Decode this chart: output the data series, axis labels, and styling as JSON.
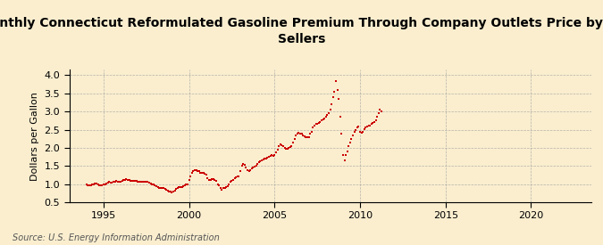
{
  "title": "Monthly Connecticut Reformulated Gasoline Premium Through Company Outlets Price by All\nSellers",
  "ylabel": "Dollars per Gallon",
  "source": "Source: U.S. Energy Information Administration",
  "background_color": "#faeecf",
  "plot_bg_color": "#faeecf",
  "marker_color": "#cc0000",
  "grid_color": "#999999",
  "xlim": [
    1993.0,
    2023.5
  ],
  "ylim": [
    0.5,
    4.15
  ],
  "xticks": [
    1995,
    2000,
    2005,
    2010,
    2015,
    2020
  ],
  "yticks": [
    0.5,
    1.0,
    1.5,
    2.0,
    2.5,
    3.0,
    3.5,
    4.0
  ],
  "title_fontsize": 10,
  "ylabel_fontsize": 8,
  "tick_fontsize": 8,
  "source_fontsize": 7,
  "data": [
    [
      1994.0,
      0.98
    ],
    [
      1994.083,
      0.97
    ],
    [
      1994.167,
      0.97
    ],
    [
      1994.25,
      0.97
    ],
    [
      1994.333,
      0.98
    ],
    [
      1994.417,
      1.0
    ],
    [
      1994.5,
      1.02
    ],
    [
      1994.583,
      1.01
    ],
    [
      1994.667,
      0.99
    ],
    [
      1994.75,
      0.97
    ],
    [
      1994.833,
      0.97
    ],
    [
      1994.917,
      0.96
    ],
    [
      1995.0,
      0.98
    ],
    [
      1995.083,
      0.99
    ],
    [
      1995.167,
      1.01
    ],
    [
      1995.25,
      1.04
    ],
    [
      1995.333,
      1.05
    ],
    [
      1995.417,
      1.04
    ],
    [
      1995.5,
      1.03
    ],
    [
      1995.583,
      1.05
    ],
    [
      1995.667,
      1.07
    ],
    [
      1995.75,
      1.08
    ],
    [
      1995.833,
      1.07
    ],
    [
      1995.917,
      1.05
    ],
    [
      1996.0,
      1.07
    ],
    [
      1996.083,
      1.08
    ],
    [
      1996.167,
      1.1
    ],
    [
      1996.25,
      1.12
    ],
    [
      1996.333,
      1.13
    ],
    [
      1996.417,
      1.12
    ],
    [
      1996.5,
      1.1
    ],
    [
      1996.583,
      1.09
    ],
    [
      1996.667,
      1.08
    ],
    [
      1996.75,
      1.09
    ],
    [
      1996.833,
      1.09
    ],
    [
      1996.917,
      1.08
    ],
    [
      1997.0,
      1.07
    ],
    [
      1997.083,
      1.06
    ],
    [
      1997.167,
      1.06
    ],
    [
      1997.25,
      1.07
    ],
    [
      1997.333,
      1.07
    ],
    [
      1997.417,
      1.07
    ],
    [
      1997.5,
      1.06
    ],
    [
      1997.583,
      1.05
    ],
    [
      1997.667,
      1.03
    ],
    [
      1997.75,
      1.02
    ],
    [
      1997.833,
      1.0
    ],
    [
      1997.917,
      0.98
    ],
    [
      1998.0,
      0.97
    ],
    [
      1998.083,
      0.94
    ],
    [
      1998.167,
      0.92
    ],
    [
      1998.25,
      0.9
    ],
    [
      1998.333,
      0.9
    ],
    [
      1998.417,
      0.89
    ],
    [
      1998.5,
      0.88
    ],
    [
      1998.583,
      0.87
    ],
    [
      1998.667,
      0.84
    ],
    [
      1998.75,
      0.82
    ],
    [
      1998.833,
      0.8
    ],
    [
      1998.917,
      0.78
    ],
    [
      1999.0,
      0.77
    ],
    [
      1999.083,
      0.78
    ],
    [
      1999.167,
      0.81
    ],
    [
      1999.25,
      0.86
    ],
    [
      1999.333,
      0.9
    ],
    [
      1999.417,
      0.92
    ],
    [
      1999.5,
      0.91
    ],
    [
      1999.583,
      0.92
    ],
    [
      1999.667,
      0.94
    ],
    [
      1999.75,
      0.96
    ],
    [
      1999.833,
      0.98
    ],
    [
      1999.917,
      1.0
    ],
    [
      2000.0,
      1.1
    ],
    [
      2000.083,
      1.2
    ],
    [
      2000.167,
      1.3
    ],
    [
      2000.25,
      1.35
    ],
    [
      2000.333,
      1.38
    ],
    [
      2000.417,
      1.38
    ],
    [
      2000.5,
      1.36
    ],
    [
      2000.583,
      1.35
    ],
    [
      2000.667,
      1.32
    ],
    [
      2000.75,
      1.31
    ],
    [
      2000.833,
      1.3
    ],
    [
      2000.917,
      1.28
    ],
    [
      2001.0,
      1.25
    ],
    [
      2001.083,
      1.15
    ],
    [
      2001.167,
      1.1
    ],
    [
      2001.25,
      1.12
    ],
    [
      2001.333,
      1.13
    ],
    [
      2001.417,
      1.14
    ],
    [
      2001.5,
      1.12
    ],
    [
      2001.583,
      1.08
    ],
    [
      2001.667,
      1.0
    ],
    [
      2001.75,
      0.96
    ],
    [
      2001.833,
      0.88
    ],
    [
      2001.917,
      0.85
    ],
    [
      2002.0,
      0.88
    ],
    [
      2002.083,
      0.9
    ],
    [
      2002.167,
      0.92
    ],
    [
      2002.25,
      0.95
    ],
    [
      2002.333,
      1.0
    ],
    [
      2002.417,
      1.05
    ],
    [
      2002.5,
      1.08
    ],
    [
      2002.583,
      1.12
    ],
    [
      2002.667,
      1.15
    ],
    [
      2002.75,
      1.18
    ],
    [
      2002.833,
      1.2
    ],
    [
      2002.917,
      1.22
    ],
    [
      2003.0,
      1.35
    ],
    [
      2003.083,
      1.5
    ],
    [
      2003.167,
      1.55
    ],
    [
      2003.25,
      1.52
    ],
    [
      2003.333,
      1.45
    ],
    [
      2003.417,
      1.38
    ],
    [
      2003.5,
      1.35
    ],
    [
      2003.583,
      1.38
    ],
    [
      2003.667,
      1.42
    ],
    [
      2003.75,
      1.45
    ],
    [
      2003.833,
      1.48
    ],
    [
      2003.917,
      1.5
    ],
    [
      2004.0,
      1.55
    ],
    [
      2004.083,
      1.6
    ],
    [
      2004.167,
      1.62
    ],
    [
      2004.25,
      1.65
    ],
    [
      2004.333,
      1.68
    ],
    [
      2004.417,
      1.7
    ],
    [
      2004.5,
      1.7
    ],
    [
      2004.583,
      1.72
    ],
    [
      2004.667,
      1.75
    ],
    [
      2004.75,
      1.78
    ],
    [
      2004.833,
      1.8
    ],
    [
      2004.917,
      1.78
    ],
    [
      2005.0,
      1.8
    ],
    [
      2005.083,
      1.88
    ],
    [
      2005.167,
      1.95
    ],
    [
      2005.25,
      2.05
    ],
    [
      2005.333,
      2.1
    ],
    [
      2005.417,
      2.08
    ],
    [
      2005.5,
      2.05
    ],
    [
      2005.583,
      2.0
    ],
    [
      2005.667,
      1.98
    ],
    [
      2005.75,
      1.98
    ],
    [
      2005.833,
      2.0
    ],
    [
      2005.917,
      2.02
    ],
    [
      2006.0,
      2.05
    ],
    [
      2006.083,
      2.15
    ],
    [
      2006.167,
      2.25
    ],
    [
      2006.25,
      2.35
    ],
    [
      2006.333,
      2.4
    ],
    [
      2006.417,
      2.42
    ],
    [
      2006.5,
      2.4
    ],
    [
      2006.583,
      2.38
    ],
    [
      2006.667,
      2.35
    ],
    [
      2006.75,
      2.32
    ],
    [
      2006.833,
      2.3
    ],
    [
      2006.917,
      2.28
    ],
    [
      2007.0,
      2.3
    ],
    [
      2007.083,
      2.38
    ],
    [
      2007.167,
      2.45
    ],
    [
      2007.25,
      2.55
    ],
    [
      2007.333,
      2.6
    ],
    [
      2007.417,
      2.65
    ],
    [
      2007.5,
      2.65
    ],
    [
      2007.583,
      2.68
    ],
    [
      2007.667,
      2.7
    ],
    [
      2007.75,
      2.75
    ],
    [
      2007.833,
      2.78
    ],
    [
      2007.917,
      2.8
    ],
    [
      2008.0,
      2.85
    ],
    [
      2008.083,
      2.9
    ],
    [
      2008.167,
      2.95
    ],
    [
      2008.25,
      3.05
    ],
    [
      2008.333,
      3.2
    ],
    [
      2008.417,
      3.4
    ],
    [
      2008.5,
      3.55
    ],
    [
      2008.583,
      3.85
    ],
    [
      2008.667,
      3.6
    ],
    [
      2008.75,
      3.35
    ],
    [
      2008.833,
      2.85
    ],
    [
      2008.917,
      2.4
    ],
    [
      2009.0,
      1.8
    ],
    [
      2009.083,
      1.65
    ],
    [
      2009.167,
      1.8
    ],
    [
      2009.25,
      1.9
    ],
    [
      2009.333,
      2.05
    ],
    [
      2009.417,
      2.15
    ],
    [
      2009.5,
      2.25
    ],
    [
      2009.583,
      2.35
    ],
    [
      2009.667,
      2.45
    ],
    [
      2009.75,
      2.5
    ],
    [
      2009.833,
      2.55
    ],
    [
      2009.917,
      2.58
    ],
    [
      2010.0,
      2.45
    ],
    [
      2010.083,
      2.42
    ],
    [
      2010.167,
      2.45
    ],
    [
      2010.25,
      2.52
    ],
    [
      2010.333,
      2.55
    ],
    [
      2010.417,
      2.58
    ],
    [
      2010.5,
      2.6
    ],
    [
      2010.583,
      2.62
    ],
    [
      2010.667,
      2.65
    ],
    [
      2010.75,
      2.68
    ],
    [
      2010.833,
      2.72
    ],
    [
      2010.917,
      2.75
    ],
    [
      2011.0,
      2.85
    ],
    [
      2011.083,
      2.95
    ],
    [
      2011.167,
      3.05
    ],
    [
      2011.25,
      3.0
    ]
  ]
}
